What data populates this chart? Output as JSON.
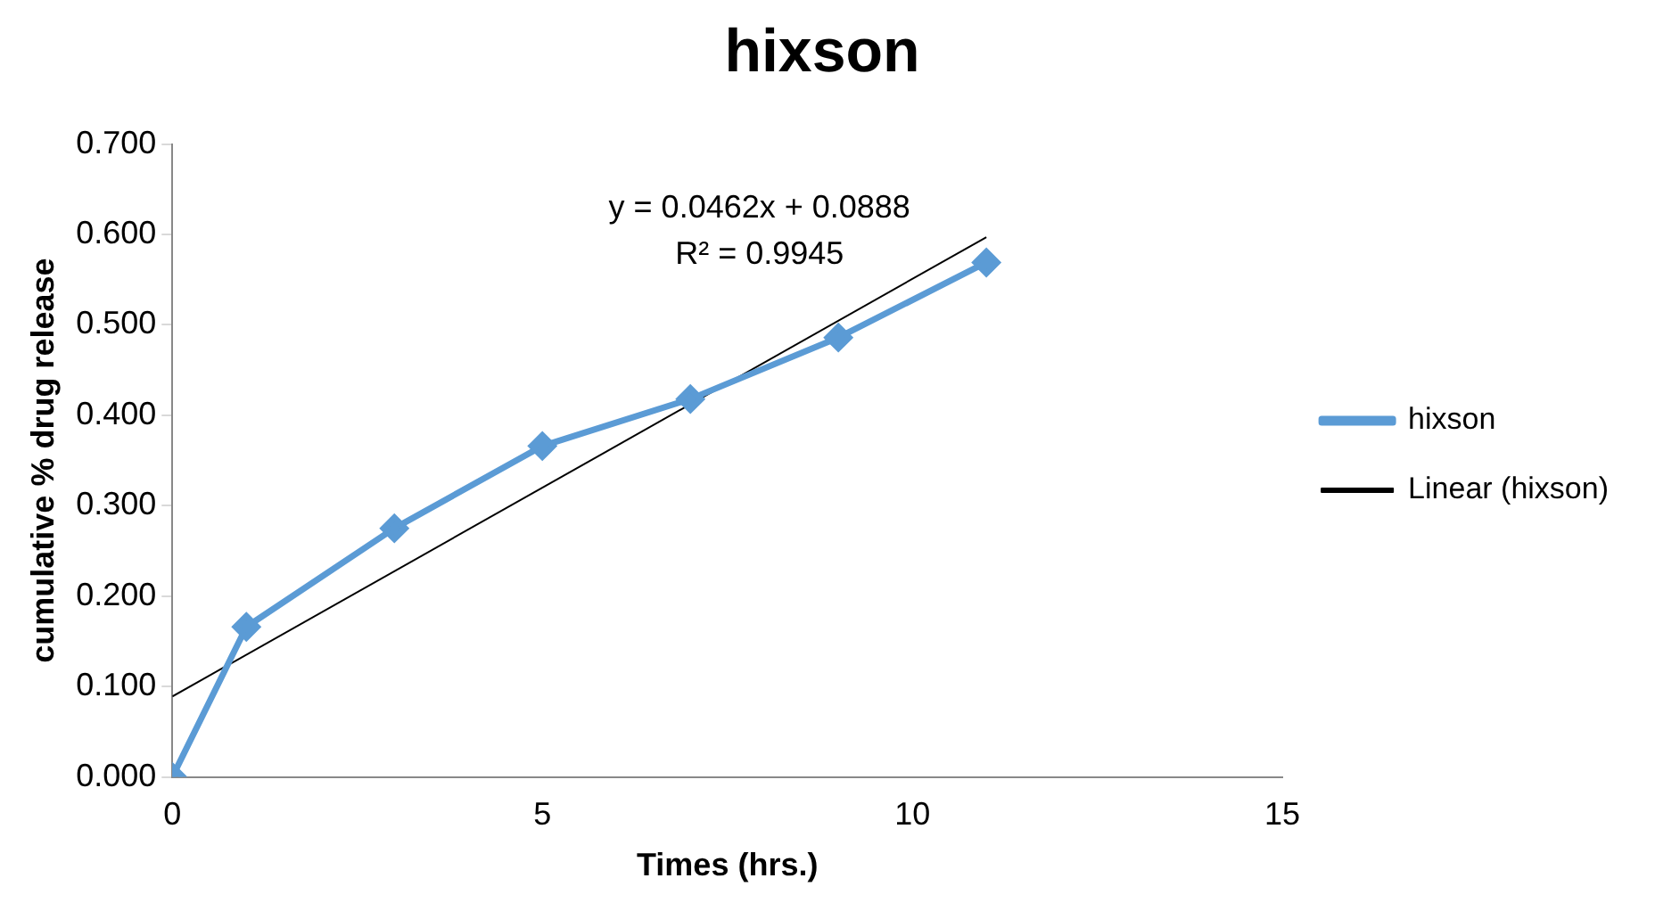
{
  "chart_data": {
    "type": "line",
    "title": "hixson",
    "xlabel": "Times (hrs.)",
    "ylabel": "cumulative % drug release",
    "xlim": [
      0,
      15
    ],
    "xticks": [
      0,
      5,
      10,
      15
    ],
    "ylim": [
      0,
      0.7
    ],
    "yticks": [
      {
        "value": 0,
        "label": "0.000"
      },
      {
        "value": 0.1,
        "label": "0.100"
      },
      {
        "value": 0.2,
        "label": "0.200"
      },
      {
        "value": 0.3,
        "label": "0.300"
      },
      {
        "value": 0.4,
        "label": "0.400"
      },
      {
        "value": 0.5,
        "label": "0.500"
      },
      {
        "value": 0.6,
        "label": "0.600"
      },
      {
        "value": 0.7,
        "label": "0.700"
      }
    ],
    "grid": false,
    "legend": "right",
    "series": [
      {
        "name": "hixson",
        "color": "#5b9bd5",
        "x": [
          0,
          1,
          3,
          5,
          7,
          9,
          11
        ],
        "values": [
          0,
          0.166,
          0.275,
          0.366,
          0.418,
          0.486,
          0.569
        ],
        "marker": "diamond"
      },
      {
        "name": "Linear (hixson)",
        "type": "line",
        "color": "#000000",
        "x": [
          0,
          11
        ],
        "values": [
          0.089,
          0.597
        ],
        "marker": "none"
      }
    ],
    "annotations": [
      "y = 0.0462x + 0.0888",
      "R² = 0.9945"
    ]
  }
}
